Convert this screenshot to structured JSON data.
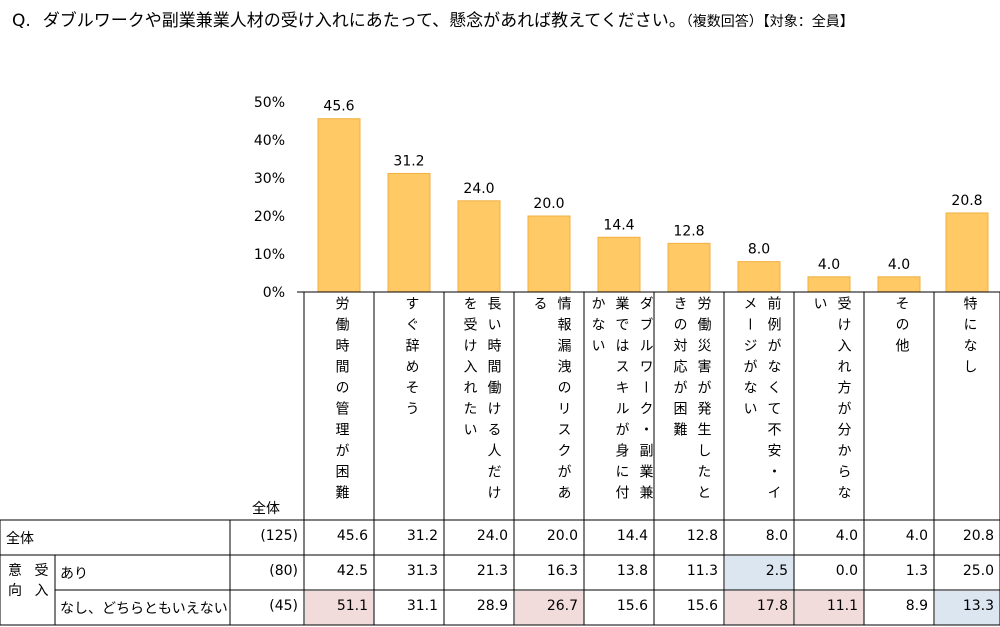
{
  "question": {
    "mark": "Q.",
    "text": "ダブルワークや副業兼業人材の受け入れにあたって、懸念があれば教えてください。",
    "note": "（複数回答）【対象：全員】"
  },
  "chart_data": {
    "type": "bar",
    "categories": [
      "労働時間の管理が困難",
      "すぐ辞めそう",
      "長い時間働ける人だけを受け入れたい",
      "情報漏洩のリスクがある",
      "ダブルワーク・副業兼業ではスキルが身に付かない",
      "労働災害が発生したときの対応が困難",
      "前例がなくて不安・イメージがない",
      "受け入れ方が分からない",
      "その他",
      "特になし"
    ],
    "category_lines": [
      [
        "労働時間の管理が困難"
      ],
      [
        "すぐ辞めそう"
      ],
      [
        "長い時間働ける人だけ",
        "を受け入れたい"
      ],
      [
        "情報漏洩のリスクがあ",
        "る"
      ],
      [
        "ダブルワーク・副業兼",
        "業ではスキルが身に付",
        "かない"
      ],
      [
        "労働災害が発生したと",
        "きの対応が困難"
      ],
      [
        "前例がなくて不安・イ",
        "メージがない"
      ],
      [
        "受け入れ方が分からな",
        "い"
      ],
      [
        "その他"
      ],
      [
        "特になし"
      ]
    ],
    "values": [
      45.6,
      31.2,
      24.0,
      20.0,
      14.4,
      12.8,
      8.0,
      4.0,
      4.0,
      20.8
    ],
    "value_labels": [
      "45.6",
      "31.2",
      "24.0",
      "20.0",
      "14.4",
      "12.8",
      "8.0",
      "4.0",
      "4.0",
      "20.8"
    ],
    "ylim": [
      0,
      50
    ],
    "yticks": [
      "0%",
      "10%",
      "20%",
      "30%",
      "40%",
      "50%"
    ],
    "bar_color": "#ffc966",
    "bar_stroke": "#f0b040"
  },
  "table": {
    "header_n_label": "全体",
    "group_label": [
      "意",
      "向",
      "受",
      "入"
    ],
    "rows": [
      {
        "label": "全体",
        "sublabel": "",
        "n": "(125)",
        "values": [
          "45.6",
          "31.2",
          "24.0",
          "20.0",
          "14.4",
          "12.8",
          "8.0",
          "4.0",
          "4.0",
          "20.8"
        ],
        "highlight": [
          "",
          "",
          "",
          "",
          "",
          "",
          "",
          "",
          "",
          ""
        ]
      },
      {
        "label": "",
        "sublabel": "あり",
        "n": "(80)",
        "values": [
          "42.5",
          "31.3",
          "21.3",
          "16.3",
          "13.8",
          "11.3",
          "2.5",
          "0.0",
          "1.3",
          "25.0"
        ],
        "highlight": [
          "",
          "",
          "",
          "",
          "",
          "",
          "blue",
          "",
          "",
          ""
        ]
      },
      {
        "label": "",
        "sublabel": "なし、どちらともいえない",
        "n": "(45)",
        "values": [
          "51.1",
          "31.1",
          "28.9",
          "26.7",
          "15.6",
          "15.6",
          "17.8",
          "11.1",
          "8.9",
          "13.3"
        ],
        "highlight": [
          "pink",
          "",
          "",
          "pink",
          "",
          "",
          "pink",
          "pink",
          "",
          "blue"
        ]
      }
    ],
    "colors": {
      "pink": "#f2dcdb",
      "blue": "#dce6f1"
    }
  }
}
